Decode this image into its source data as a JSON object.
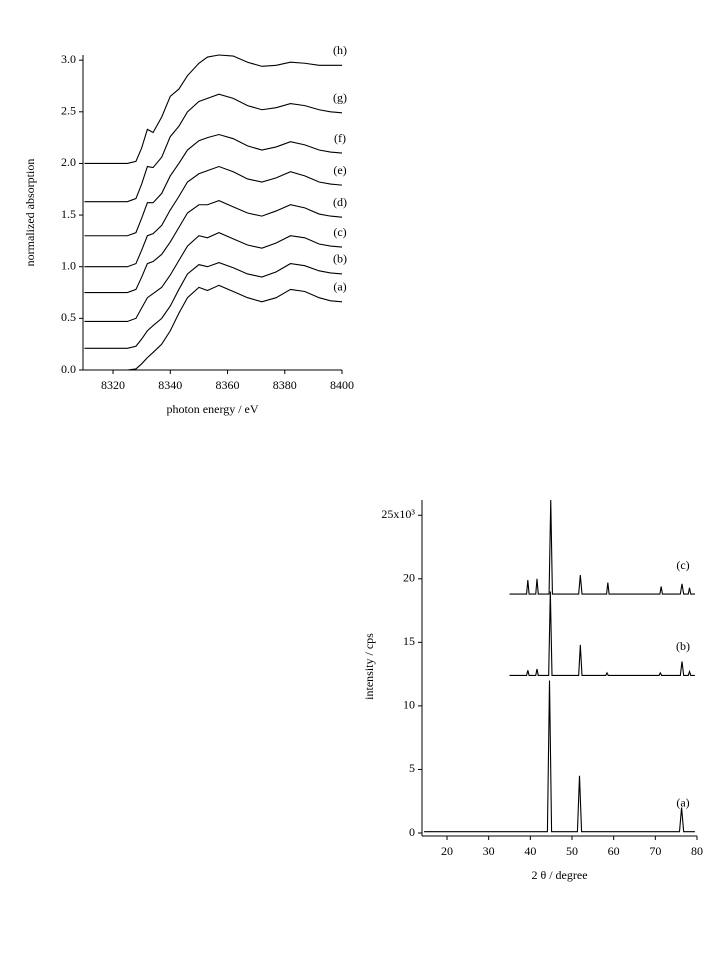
{
  "chart_data": [
    {
      "type": "line",
      "color": "#000000",
      "xlabel": "photon energy / eV",
      "ylabel": "normalized absorption",
      "xlim": [
        8309.5,
        8400
      ],
      "ylim": [
        0,
        3.05
      ],
      "xticks": [
        8320,
        8340,
        8360,
        8380,
        8400
      ],
      "yticks": [
        {
          "value": 0,
          "label": "0.0"
        },
        0.5,
        {
          "value": 1,
          "label": "1.0"
        },
        1.5,
        {
          "value": 2,
          "label": "2.0"
        },
        2.5,
        {
          "value": 3,
          "label": "3.0"
        }
      ],
      "series": [
        {
          "name": "(a)",
          "x": [
            8310,
            8325,
            8328,
            8330,
            8332,
            8334,
            8337,
            8340,
            8343,
            8346,
            8350,
            8353,
            8357,
            8362,
            8367,
            8372,
            8377,
            8382,
            8387,
            8392,
            8396,
            8400
          ],
          "values": [
            0,
            0,
            0.01,
            0.06,
            0.12,
            0.17,
            0.25,
            0.38,
            0.55,
            0.7,
            0.8,
            0.77,
            0.82,
            0.76,
            0.7,
            0.66,
            0.7,
            0.78,
            0.76,
            0.7,
            0.67,
            0.66
          ]
        },
        {
          "name": "(b)",
          "x": [
            8310,
            8325,
            8328,
            8330,
            8332,
            8334,
            8337,
            8340,
            8343,
            8346,
            8350,
            8353,
            8357,
            8362,
            8367,
            8372,
            8377,
            8382,
            8387,
            8392,
            8396,
            8400
          ],
          "values": [
            0.21,
            0.21,
            0.23,
            0.3,
            0.38,
            0.43,
            0.5,
            0.62,
            0.78,
            0.93,
            1.02,
            1.0,
            1.04,
            0.99,
            0.93,
            0.9,
            0.95,
            1.03,
            1.01,
            0.96,
            0.94,
            0.93
          ]
        },
        {
          "name": "(c)",
          "x": [
            8310,
            8325,
            8328,
            8330,
            8332,
            8334,
            8337,
            8340,
            8343,
            8346,
            8350,
            8353,
            8357,
            8362,
            8367,
            8372,
            8377,
            8382,
            8387,
            8392,
            8396,
            8400
          ],
          "values": [
            0.47,
            0.47,
            0.5,
            0.6,
            0.7,
            0.74,
            0.8,
            0.92,
            1.06,
            1.2,
            1.3,
            1.28,
            1.33,
            1.27,
            1.21,
            1.18,
            1.23,
            1.3,
            1.28,
            1.22,
            1.2,
            1.19
          ]
        },
        {
          "name": "(d)",
          "x": [
            8310,
            8325,
            8328,
            8330,
            8332,
            8334,
            8337,
            8340,
            8343,
            8346,
            8350,
            8353,
            8357,
            8362,
            8367,
            8372,
            8377,
            8382,
            8387,
            8392,
            8396,
            8400
          ],
          "values": [
            0.75,
            0.75,
            0.78,
            0.9,
            1.03,
            1.05,
            1.12,
            1.24,
            1.38,
            1.52,
            1.6,
            1.6,
            1.64,
            1.58,
            1.52,
            1.49,
            1.54,
            1.6,
            1.57,
            1.51,
            1.49,
            1.48
          ]
        },
        {
          "name": "(e)",
          "x": [
            8310,
            8325,
            8328,
            8330,
            8332,
            8334,
            8337,
            8340,
            8343,
            8346,
            8350,
            8353,
            8357,
            8362,
            8367,
            8372,
            8377,
            8382,
            8387,
            8392,
            8396,
            8400
          ],
          "values": [
            1.0,
            1.0,
            1.03,
            1.16,
            1.3,
            1.32,
            1.4,
            1.55,
            1.68,
            1.82,
            1.9,
            1.93,
            1.97,
            1.92,
            1.85,
            1.82,
            1.86,
            1.92,
            1.88,
            1.82,
            1.8,
            1.79
          ]
        },
        {
          "name": "(f)",
          "x": [
            8310,
            8325,
            8328,
            8330,
            8332,
            8334,
            8337,
            8340,
            8343,
            8346,
            8350,
            8353,
            8357,
            8362,
            8367,
            8372,
            8377,
            8382,
            8387,
            8392,
            8396,
            8400
          ],
          "values": [
            1.3,
            1.3,
            1.33,
            1.47,
            1.62,
            1.62,
            1.71,
            1.88,
            2.0,
            2.13,
            2.22,
            2.25,
            2.28,
            2.24,
            2.17,
            2.13,
            2.16,
            2.21,
            2.18,
            2.13,
            2.11,
            2.1
          ]
        },
        {
          "name": "(g)",
          "x": [
            8310,
            8325,
            8328,
            8330,
            8332,
            8334,
            8337,
            8340,
            8343,
            8346,
            8350,
            8353,
            8357,
            8362,
            8367,
            8372,
            8377,
            8382,
            8387,
            8392,
            8396,
            8400
          ],
          "values": [
            1.63,
            1.63,
            1.66,
            1.8,
            1.97,
            1.96,
            2.06,
            2.26,
            2.36,
            2.5,
            2.6,
            2.63,
            2.67,
            2.63,
            2.56,
            2.52,
            2.54,
            2.58,
            2.56,
            2.52,
            2.5,
            2.49
          ]
        },
        {
          "name": "(h)",
          "x": [
            8310,
            8325,
            8328,
            8330,
            8332,
            8334,
            8337,
            8340,
            8343,
            8346,
            8350,
            8353,
            8357,
            8362,
            8367,
            8372,
            8377,
            8382,
            8387,
            8392,
            8396,
            8400
          ],
          "values": [
            2.0,
            2.0,
            2.02,
            2.15,
            2.33,
            2.3,
            2.45,
            2.65,
            2.72,
            2.85,
            2.97,
            3.03,
            3.05,
            3.04,
            2.98,
            2.94,
            2.95,
            2.98,
            2.97,
            2.95,
            2.95,
            2.95
          ]
        }
      ]
    },
    {
      "type": "line",
      "color": "#000000",
      "xlabel": "2 θ / degree",
      "ylabel": "intensity / cps",
      "xlim": [
        14,
        80
      ],
      "ylim": [
        0,
        26.2
      ],
      "xticks": [
        20,
        30,
        40,
        50,
        60,
        70,
        80
      ],
      "yticks": [
        0,
        5,
        10,
        15,
        20,
        {
          "value": 25,
          "label": "25x10³"
        }
      ],
      "series": [
        {
          "name": "(a)",
          "x": [
            14.5,
            44.1,
            44.6,
            45.1,
            51.3,
            51.8,
            52.3,
            75.8,
            76.3,
            76.8,
            79.5
          ],
          "values": [
            0.1,
            0.1,
            12,
            0.1,
            0.1,
            4.5,
            0.1,
            0.1,
            2.0,
            0.1,
            0.1
          ]
        },
        {
          "name": "(b)",
          "x": [
            35,
            39.1,
            39.4,
            39.7,
            41.3,
            41.6,
            41.9,
            44.4,
            44.8,
            45.2,
            51.6,
            52.0,
            52.4,
            58.1,
            58.4,
            58.7,
            70.9,
            71.2,
            71.5,
            76.0,
            76.4,
            76.8,
            77.9,
            78.2,
            78.5,
            79.5
          ],
          "values": [
            12.4,
            12.4,
            12.8,
            12.4,
            12.4,
            12.9,
            12.4,
            12.4,
            19.0,
            12.4,
            12.4,
            14.8,
            12.4,
            12.4,
            12.6,
            12.4,
            12.4,
            12.6,
            12.4,
            12.4,
            13.5,
            12.4,
            12.4,
            12.7,
            12.4,
            12.4
          ]
        },
        {
          "name": "(c)",
          "x": [
            35,
            39.1,
            39.4,
            39.7,
            41.3,
            41.6,
            41.9,
            44.5,
            44.9,
            45.3,
            51.6,
            52.0,
            52.4,
            58.3,
            58.6,
            58.9,
            71.1,
            71.4,
            71.7,
            76.0,
            76.4,
            76.8,
            77.9,
            78.2,
            78.5,
            79.5
          ],
          "values": [
            18.8,
            18.8,
            19.9,
            18.8,
            18.8,
            20.0,
            18.8,
            18.8,
            26.2,
            18.8,
            18.8,
            20.3,
            18.8,
            18.8,
            19.7,
            18.8,
            18.8,
            19.4,
            18.8,
            18.8,
            19.6,
            18.8,
            18.8,
            19.3,
            18.8,
            18.8
          ]
        }
      ]
    }
  ]
}
